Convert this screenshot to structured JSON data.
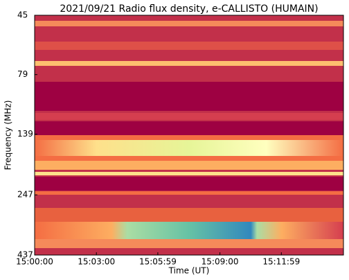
{
  "chart_data": {
    "type": "spectrogram",
    "title": "2021/09/21  Radio flux density, e-CALLISTO (HUMAIN)",
    "x_label": "Time (UT)",
    "y_label": "Frequency (MHz)",
    "xlim": [
      "15:00:00",
      "15:15:00"
    ],
    "xticks": [
      "15:00:00",
      "15:03:00",
      "15:05:59",
      "15:09:00",
      "15:11:59"
    ],
    "ylim": [
      45,
      437
    ],
    "yticks": [
      45,
      79,
      139,
      247,
      437
    ],
    "y_log": true,
    "y_inverted": true
  }
}
